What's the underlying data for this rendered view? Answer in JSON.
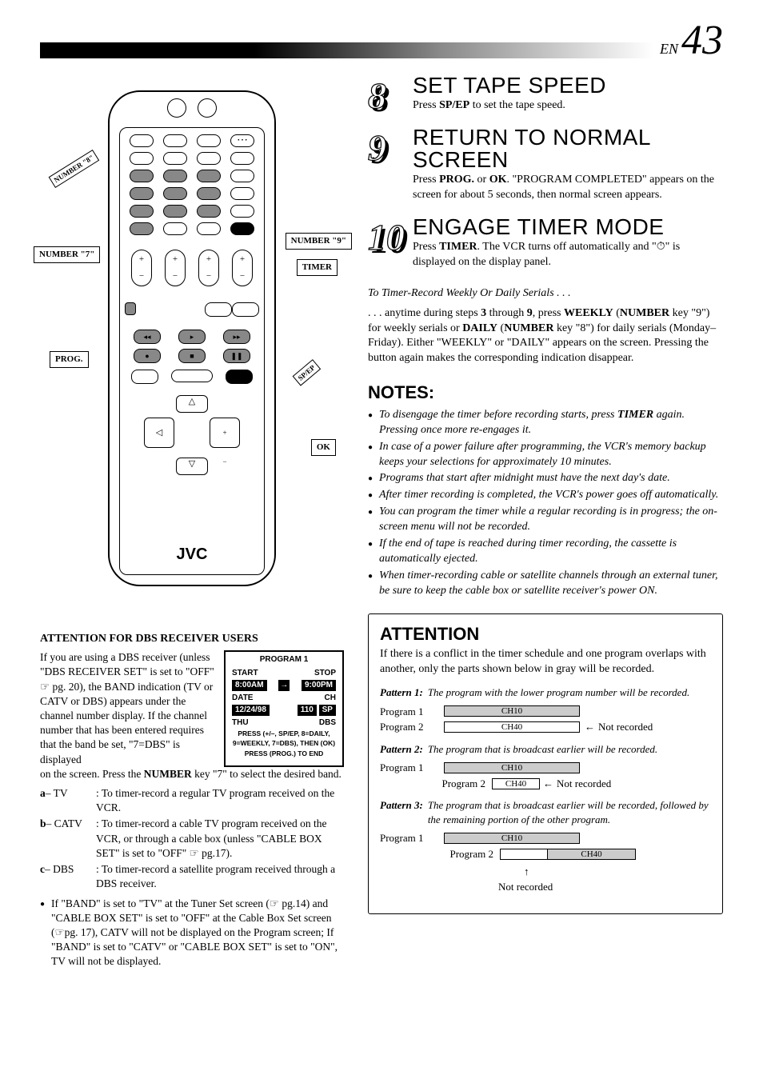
{
  "page": {
    "prefix": "EN",
    "number": "43"
  },
  "remote": {
    "brand": "JVC",
    "callouts": {
      "num7": "NUMBER \"7\"",
      "num8": "NUMBER \"8\"",
      "num9": "NUMBER \"9\"",
      "timer": "TIMER",
      "prog": "PROG.",
      "spep": "SP/EP",
      "ok": "OK"
    }
  },
  "steps": [
    {
      "num": "8",
      "title": "SET TAPE SPEED",
      "body_html": "Press <b>SP/EP</b> to set the tape speed."
    },
    {
      "num": "9",
      "title": "RETURN TO NORMAL SCREEN",
      "body_html": "Press <b>PROG.</b> or <b>OK</b>. \"PROGRAM COMPLETED\" appears on the screen for about 5 seconds, then normal screen appears."
    },
    {
      "num": "10",
      "title": "ENGAGE TIMER MODE",
      "body_html": "Press <b>TIMER</b>. The VCR turns off automatically and \"⏱\" is displayed on the display panel."
    }
  ],
  "serials": {
    "heading": "To Timer-Record Weekly Or Daily Serials . . .",
    "body_html": ". . . anytime during steps <b>3</b> through <b>9</b>, press <b>WEEKLY</b> (<b>NUMBER</b> key \"9\") for weekly serials or <b>DAILY</b> (<b>NUMBER</b> key \"8\") for daily serials (Monday–Friday). Either \"WEEKLY\" or \"DAILY\" appears on the screen. Pressing the button again makes the corresponding indication disappear."
  },
  "notes": {
    "title": "NOTES:",
    "items": [
      "To disengage the timer before recording starts, press <b>TIMER</b> again. Pressing once more re-engages it.",
      "In case of a power failure after programming, the VCR's memory backup keeps your selections for approximately 10 minutes.",
      "Programs that start after midnight must have the next day's date.",
      "After timer recording is completed, the VCR's power goes off automatically.",
      "You can program the timer while a regular recording is in progress; the on-screen menu will not be recorded.",
      "If the end of tape is reached during timer recording, the cassette is automatically ejected.",
      "When timer-recording cable or satellite channels through an external tuner, be sure to keep the cable box or satellite receiver's power ON."
    ]
  },
  "attention": {
    "title": "ATTENTION",
    "intro": "If there is a conflict in the timer schedule and one program overlaps with another, only the parts shown below in gray will be recorded.",
    "patterns": [
      {
        "label": "Pattern 1:",
        "text": "The program with the lower program number will be recorded."
      },
      {
        "label": "Pattern 2:",
        "text": "The program that is broadcast earlier will be recorded."
      },
      {
        "label": "Pattern 3:",
        "text": "The program that is broadcast earlier will be recorded, followed by the remaining portion of the other program."
      }
    ],
    "timeline": {
      "p1": "Program 1",
      "p2": "Program 2",
      "ch10": "CH10",
      "ch40": "CH40",
      "not_recorded": "Not recorded"
    }
  },
  "dbs": {
    "title": "ATTENTION FOR DBS RECEIVER USERS",
    "text1_html": "If you are using a DBS receiver (unless \"DBS RECEIVER SET\" is set to \"OFF\" ☞ pg. 20), the BAND indication (TV or CATV or DBS) appears under the channel number display. If the channel number that has been entered requires that the band be set, \"7=DBS\" is displayed",
    "text2_html": "on the screen. Press the <b>NUMBER</b> key \"7\" to select the desired band.",
    "options": [
      {
        "k": "a",
        "name": "TV",
        "desc": "To timer-record a regular TV program received on the VCR."
      },
      {
        "k": "b",
        "name": "CATV",
        "desc": "To timer-record a cable TV program received on the VCR, or through a cable box (unless \"CABLE BOX SET\" is set to \"OFF\" ☞ pg.17)."
      },
      {
        "k": "c",
        "name": "DBS",
        "desc": "To timer-record a satellite program received through a DBS receiver."
      }
    ],
    "bullet": "If \"BAND\" is set to \"TV\" at the Tuner Set screen (☞ pg.14) and \"CABLE BOX SET\" is set to \"OFF\" at the Cable Box Set screen (☞pg. 17), CATV will not be displayed on the Program screen; If \"BAND\" is set to \"CATV\" or \"CABLE BOX SET\" is set to \"ON\", TV will not be displayed.",
    "program_box": {
      "title": "PROGRAM 1",
      "start_lbl": "START",
      "stop_lbl": "STOP",
      "start_val": "8:00AM",
      "stop_val": "9:00PM",
      "date_lbl": "DATE",
      "ch_lbl": "CH",
      "date_val": "12/24/98",
      "ch_val": "110",
      "sp": "SP",
      "day": "THU",
      "dbs": "DBS",
      "line1": "PRESS (+/–, SP/EP, 8=DAILY,",
      "line2": "9=WEEKLY, 7=DBS), THEN (OK)",
      "line3": "PRESS (PROG.) TO END"
    }
  }
}
